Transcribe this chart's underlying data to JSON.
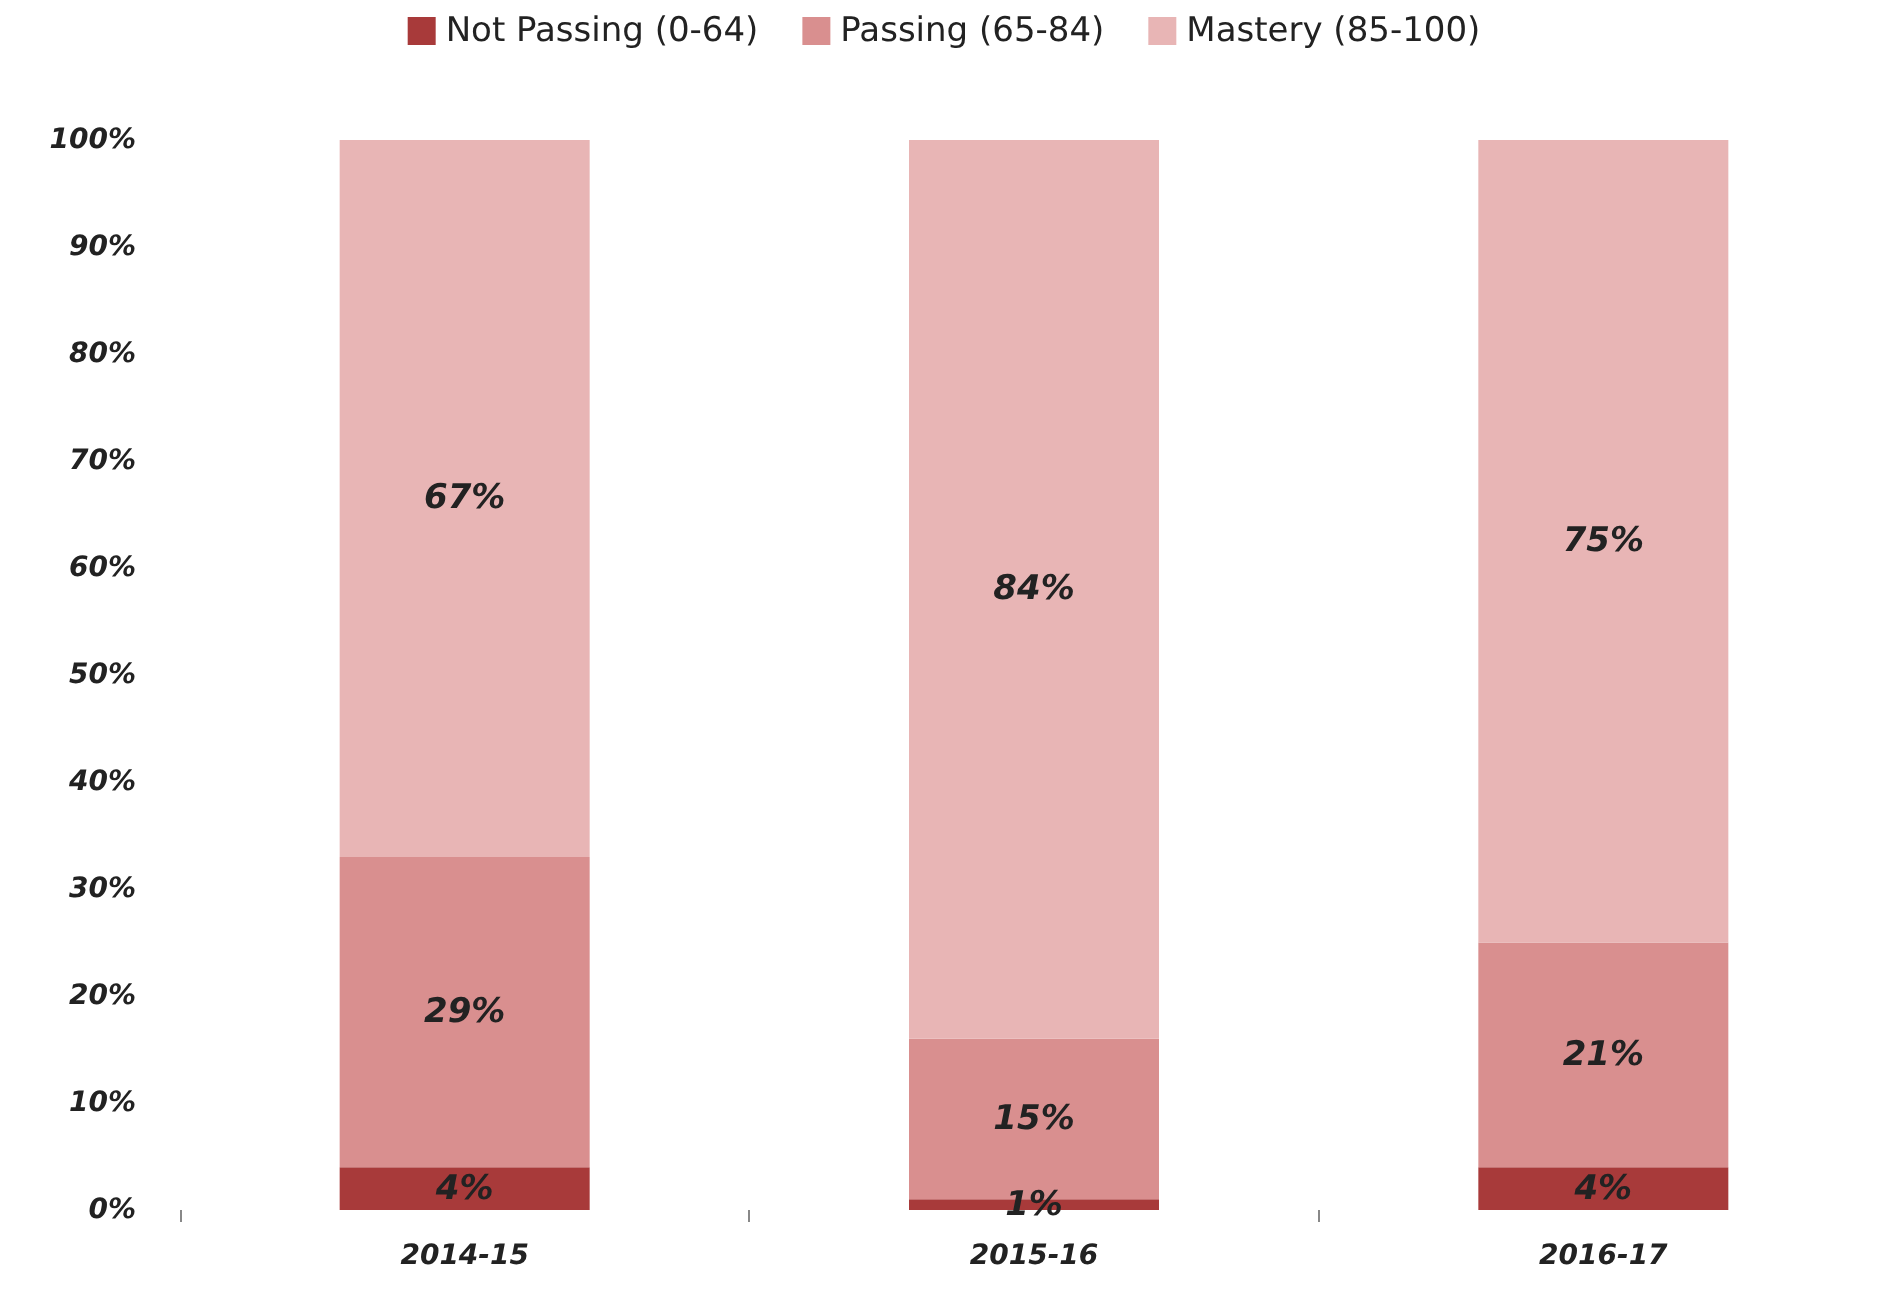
{
  "chart_data": {
    "type": "bar",
    "stacked": true,
    "categories": [
      "2014-15",
      "2015-16",
      "2016-17"
    ],
    "series": [
      {
        "name": "Not Passing (0-64)",
        "color": "#a83a3a",
        "values": [
          4,
          1,
          4
        ],
        "value_labels": [
          "4%",
          "1%",
          "4%"
        ]
      },
      {
        "name": "Passing (65-84)",
        "color": "#d98f8f",
        "values": [
          29,
          15,
          21
        ],
        "value_labels": [
          "29%",
          "15%",
          "21%"
        ]
      },
      {
        "name": "Mastery (85-100)",
        "color": "#e8b5b5",
        "values": [
          67,
          84,
          75
        ],
        "value_labels": [
          "67%",
          "84%",
          "75%"
        ]
      }
    ],
    "ylim": [
      0,
      100
    ],
    "yticks": [
      {
        "value": 0,
        "label": "0%"
      },
      {
        "value": 10,
        "label": "10%"
      },
      {
        "value": 20,
        "label": "20%"
      },
      {
        "value": 30,
        "label": "30%"
      },
      {
        "value": 40,
        "label": "40%"
      },
      {
        "value": 50,
        "label": "50%"
      },
      {
        "value": 60,
        "label": "60%"
      },
      {
        "value": 70,
        "label": "70%"
      },
      {
        "value": 80,
        "label": "80%"
      },
      {
        "value": 90,
        "label": "90%"
      },
      {
        "value": 100,
        "label": "100%"
      }
    ],
    "grid": false,
    "legend": "top"
  }
}
